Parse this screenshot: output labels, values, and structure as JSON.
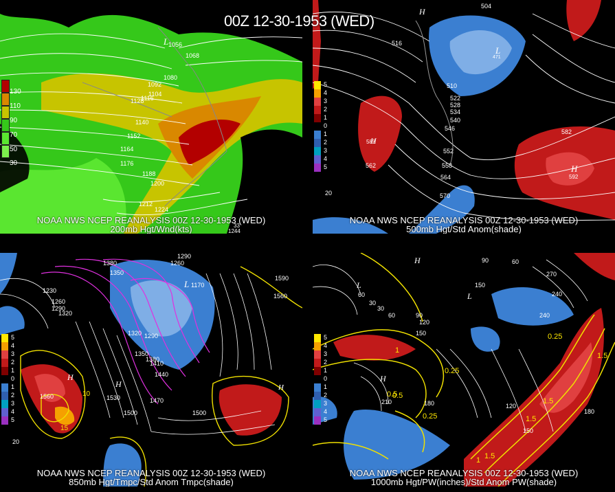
{
  "title": "00Z 12-30-1953 (WED)",
  "panels": [
    {
      "caption1": "NOAA NWS NCEP REANALYSIS 00Z 12-30-1953 (WED)",
      "caption2": "200mb Hgt/Wnd(kts)",
      "legend": [
        "130",
        "110",
        "90",
        "70",
        "50",
        "30"
      ],
      "contours": [
        "1056",
        "1068",
        "1080",
        "1092",
        "1104",
        "1116",
        "1128",
        "1140",
        "1152",
        "1164",
        "1176",
        "1188",
        "1200",
        "1212",
        "1224"
      ],
      "extra": [
        "1244",
        "33"
      ]
    },
    {
      "caption1": "NOAA NWS NCEP REANALYSIS 00Z 12-30-1953 (WED)",
      "caption2": "500mb Hgt/Std Anom(shade)",
      "legend": [
        "5",
        "4",
        "3",
        "2",
        "1",
        "0",
        "1",
        "2",
        "3",
        "4",
        "5"
      ],
      "contours": [
        "504",
        "516",
        "510",
        "522",
        "528",
        "534",
        "540",
        "546",
        "552",
        "558",
        "564",
        "570",
        "582",
        "562",
        "592",
        "582"
      ],
      "extra": [
        "H",
        "L",
        "H",
        "H",
        "20",
        "471"
      ]
    },
    {
      "caption1": "NOAA NWS NCEP REANALYSIS 00Z 12-30-1953 (WED)",
      "caption2": "850mb Hgt/Tmpc/Std Anom Tmpc(shade)",
      "legend": [
        "5",
        "4",
        "3",
        "2",
        "1",
        "0",
        "1",
        "2",
        "3",
        "4",
        "5"
      ],
      "contours": [
        "1380",
        "1350",
        "1260",
        "1290",
        "1320",
        "1230",
        "1170",
        "1290",
        "1320",
        "1350",
        "1380",
        "1410",
        "1440",
        "1470",
        "1500",
        "1530",
        "1560",
        "1590",
        "1560",
        "1500",
        "1290",
        "1260"
      ],
      "extra": [
        "H",
        "L",
        "H",
        "H",
        "15",
        "10",
        "20"
      ]
    },
    {
      "caption1": "NOAA NWS NCEP REANALYSIS 00Z 12-30-1953 (WED)",
      "caption2": "1000mb Hgt/PW(inches)/Std Anom PW(shade)",
      "legend": [
        "5",
        "4",
        "3",
        "2",
        "1",
        "0",
        "1",
        "2",
        "3",
        "4",
        "5"
      ],
      "contours": [
        "60",
        "30",
        "30",
        "60",
        "90",
        "120",
        "150",
        "180",
        "210",
        "240",
        "270",
        "90",
        "60",
        "150",
        "180",
        "120",
        "150",
        "240"
      ],
      "extra": [
        "1.5",
        "1",
        "0.5",
        "0.25",
        "1.5",
        "1.5",
        "0.25",
        "0.25",
        "1",
        "1.5",
        "0.5",
        "H",
        "L",
        "H",
        "L"
      ]
    }
  ]
}
